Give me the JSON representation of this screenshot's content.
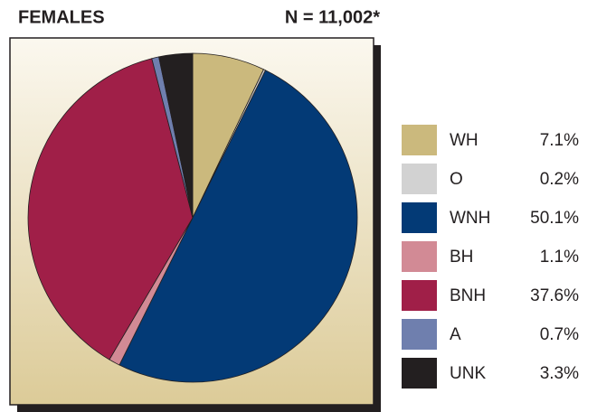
{
  "chart_data": {
    "type": "pie",
    "title": "FEMALES",
    "subtitle": "N = 11,002*",
    "categories": [
      "WH",
      "O",
      "WNH",
      "BH",
      "BNH",
      "A",
      "UNK"
    ],
    "values": [
      7.1,
      0.2,
      50.1,
      1.1,
      37.6,
      0.7,
      3.3
    ],
    "value_labels": [
      "7.1%",
      "0.2%",
      "50.1%",
      "1.1%",
      "37.6%",
      "0.7%",
      "3.3%"
    ],
    "colors": [
      "#cbb97d",
      "#d2d2d2",
      "#033a76",
      "#d28a95",
      "#a01f48",
      "#6f7fae",
      "#231f20"
    ],
    "legend": "right"
  }
}
